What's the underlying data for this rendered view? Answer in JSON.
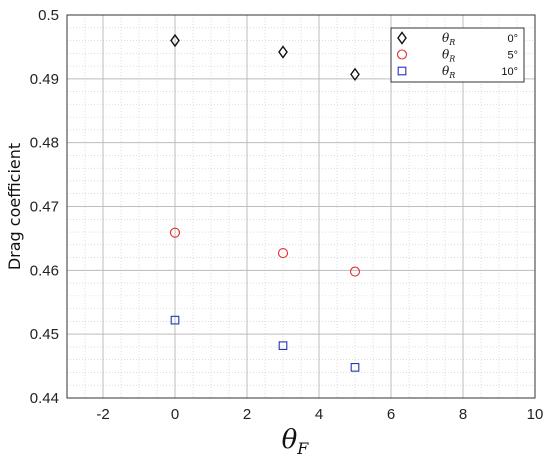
{
  "chart_data": {
    "type": "scatter",
    "xlabel": {
      "symbol": "θ",
      "sub": "F"
    },
    "ylabel": "Drag coefficient",
    "xlim": [
      -3,
      10
    ],
    "ylim": [
      0.44,
      0.5
    ],
    "xticks": [
      -2,
      0,
      2,
      4,
      6,
      8,
      10
    ],
    "yticks": [
      0.44,
      0.45,
      0.46,
      0.47,
      0.48,
      0.49,
      0.5
    ],
    "xtick_labels": [
      "-2",
      "0",
      "2",
      "4",
      "6",
      "8",
      "10"
    ],
    "ytick_labels": [
      "0.44",
      "0.45",
      "0.46",
      "0.47",
      "0.48",
      "0.49",
      "0.5"
    ],
    "grid": true,
    "minor_grid": true,
    "legend_position": "top-right",
    "series": [
      {
        "symbol": "θ",
        "sub": "R",
        "value": "0°",
        "marker": "diamond",
        "color": "#111111",
        "x": [
          0,
          3,
          5
        ],
        "y": [
          0.496,
          0.4942,
          0.4907
        ]
      },
      {
        "symbol": "θ",
        "sub": "R",
        "value": "5°",
        "marker": "circle",
        "color": "#e03030",
        "x": [
          0,
          3,
          5
        ],
        "y": [
          0.4659,
          0.4627,
          0.4598
        ]
      },
      {
        "symbol": "θ",
        "sub": "R",
        "value": "10°",
        "marker": "square",
        "color": "#2233bb",
        "x": [
          0,
          3,
          5
        ],
        "y": [
          0.4522,
          0.4482,
          0.4448
        ]
      }
    ]
  }
}
